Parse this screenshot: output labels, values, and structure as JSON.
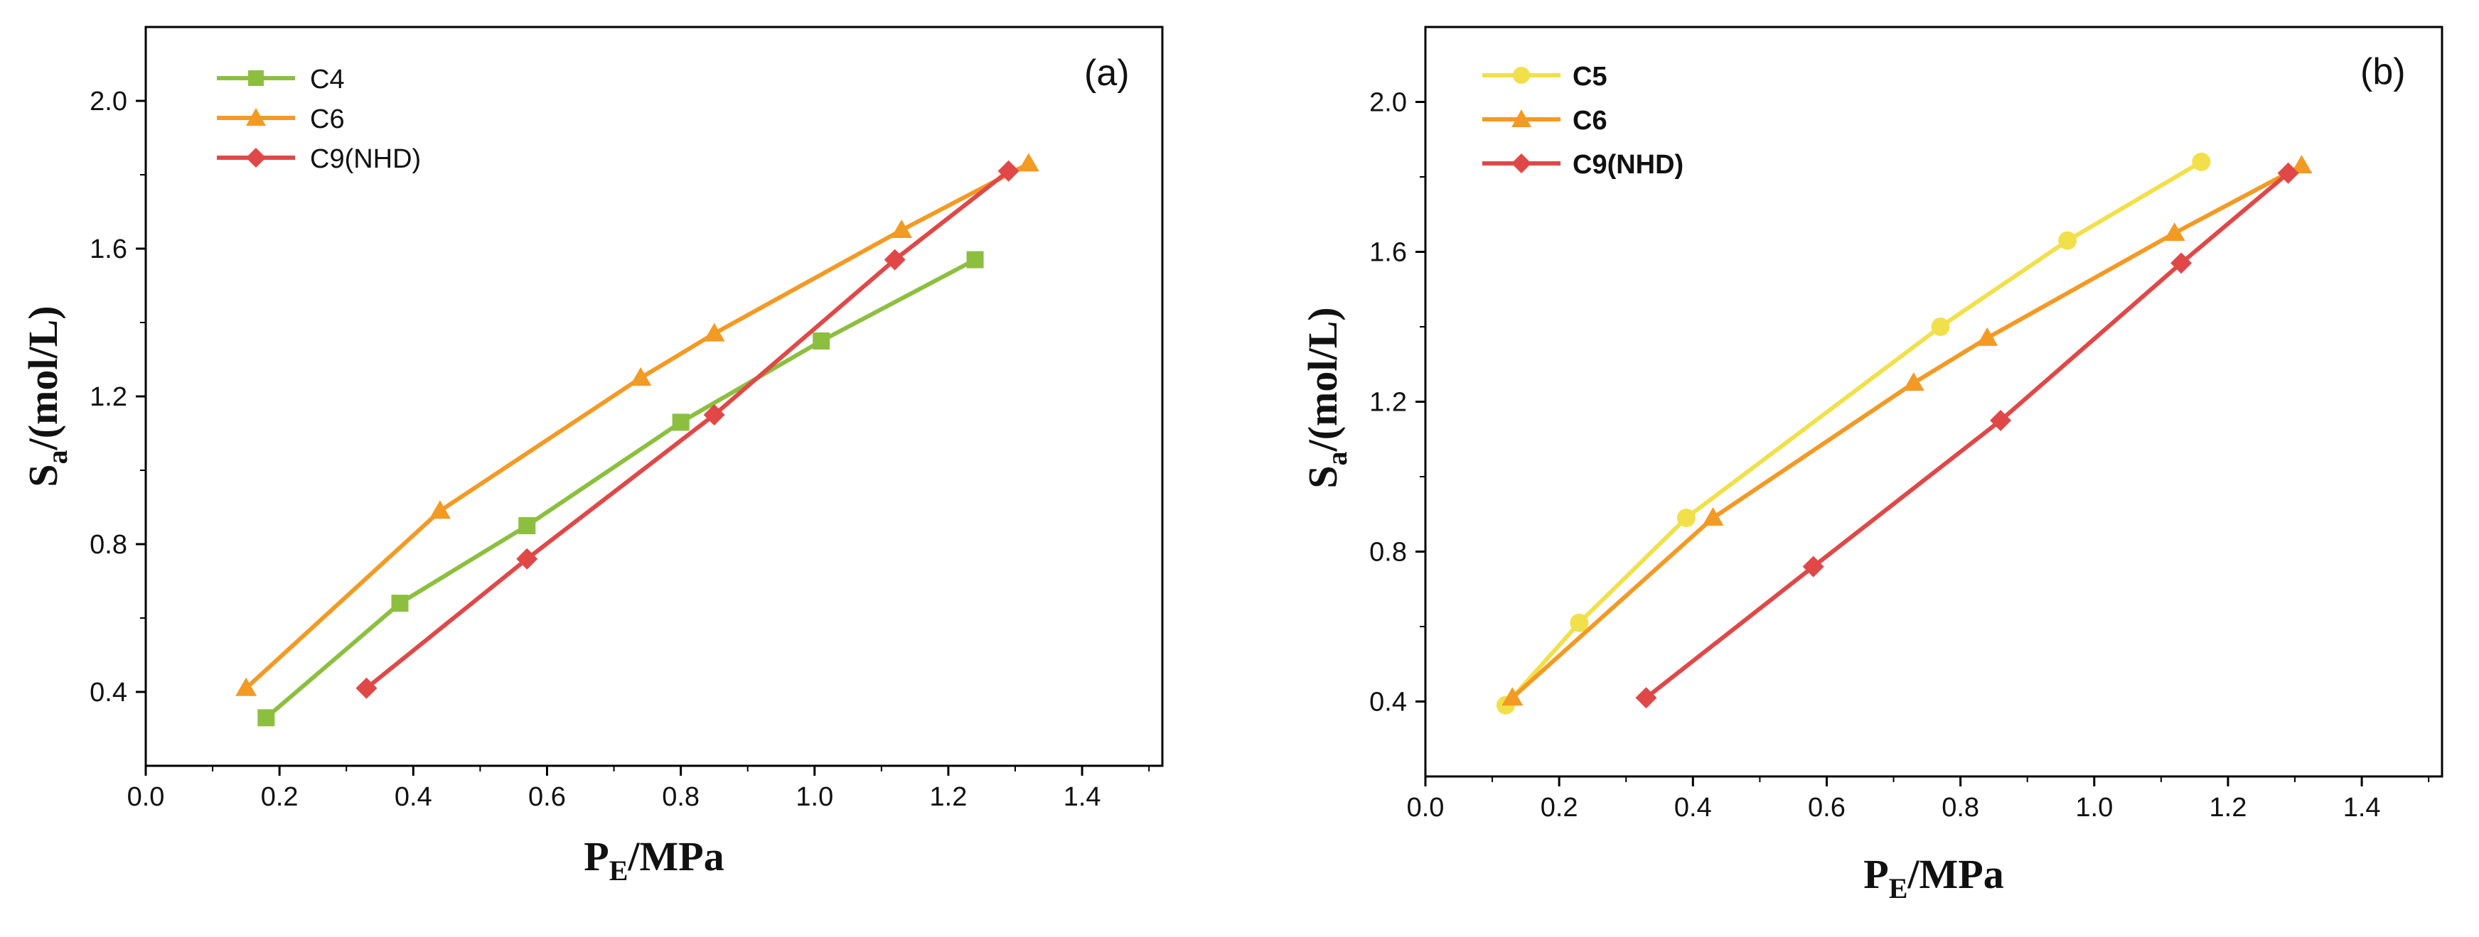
{
  "chart_data": [
    {
      "type": "line",
      "panel_label": "(a)",
      "xlabel_main": "P",
      "xlabel_sub": "E",
      "xlabel_rest": "/MPa",
      "ylabel_main": "S",
      "ylabel_sub": "a",
      "ylabel_rest": "/(mol/L)",
      "xlim": [
        0.0,
        1.52
      ],
      "ylim": [
        0.2,
        2.2
      ],
      "xticks": [
        "0.0",
        "0.2",
        "0.4",
        "0.6",
        "0.8",
        "1.0",
        "1.2",
        "1.4"
      ],
      "yticks": [
        "0.4",
        "0.8",
        "1.2",
        "1.6",
        "2.0"
      ],
      "legend_position": "top-left",
      "series": [
        {
          "name": "C4",
          "color": "#8cbf3f",
          "marker": "square",
          "x": [
            0.18,
            0.38,
            0.57,
            0.8,
            1.01,
            1.24
          ],
          "y": [
            0.33,
            0.64,
            0.85,
            1.13,
            1.35,
            1.57
          ]
        },
        {
          "name": "C6",
          "color": "#f39a24",
          "marker": "triangle",
          "x": [
            0.15,
            0.44,
            0.74,
            0.85,
            1.13,
            1.32
          ],
          "y": [
            0.41,
            0.89,
            1.25,
            1.37,
            1.65,
            1.83
          ]
        },
        {
          "name": "C9(NHD)",
          "color": "#e04848",
          "marker": "diamond",
          "x": [
            0.33,
            0.57,
            0.85,
            1.12,
            1.29
          ],
          "y": [
            0.41,
            0.76,
            1.15,
            1.57,
            1.81
          ]
        }
      ]
    },
    {
      "type": "line",
      "panel_label": "(b)",
      "xlabel_main": "P",
      "xlabel_sub": "E",
      "xlabel_rest": "/MPa",
      "ylabel_main": "S",
      "ylabel_sub": "a",
      "ylabel_rest": "/(mol/L)",
      "xlim": [
        0.0,
        1.52
      ],
      "ylim": [
        0.2,
        2.2
      ],
      "xticks": [
        "0.0",
        "0.2",
        "0.4",
        "0.6",
        "0.8",
        "1.0",
        "1.2",
        "1.4"
      ],
      "yticks": [
        "0.4",
        "0.8",
        "1.2",
        "1.6",
        "2.0"
      ],
      "legend_position": "top-left",
      "series": [
        {
          "name": "C5",
          "color": "#f2e04a",
          "marker": "circle",
          "x": [
            0.12,
            0.23,
            0.39,
            0.77,
            0.96,
            1.16
          ],
          "y": [
            0.39,
            0.61,
            0.89,
            1.4,
            1.63,
            1.84
          ]
        },
        {
          "name": "C6",
          "color": "#f39a24",
          "marker": "triangle",
          "x": [
            0.13,
            0.43,
            0.73,
            0.84,
            1.12,
            1.31
          ],
          "y": [
            0.41,
            0.89,
            1.25,
            1.37,
            1.65,
            1.83
          ]
        },
        {
          "name": "C9(NHD)",
          "color": "#e04848",
          "marker": "diamond",
          "x": [
            0.33,
            0.58,
            0.86,
            1.13,
            1.29
          ],
          "y": [
            0.41,
            0.76,
            1.15,
            1.57,
            1.81
          ]
        }
      ]
    }
  ]
}
